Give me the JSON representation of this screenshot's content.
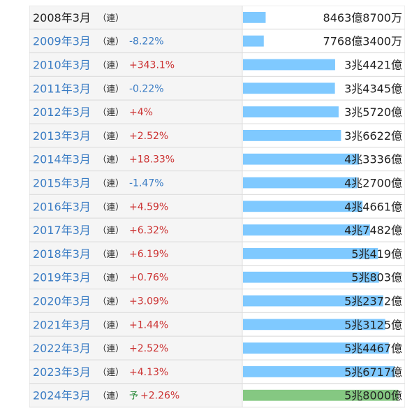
{
  "chart_data": {
    "type": "bar",
    "orientation": "horizontal",
    "rows": [
      {
        "label": "2008年3月",
        "tag": "（連）",
        "change": "",
        "forecast": "",
        "value_text": "8463億8700万",
        "value": 8463.87,
        "link": false
      },
      {
        "label": "2009年3月",
        "tag": "（連）",
        "change": "-8.22%",
        "forecast": "",
        "value_text": "7768億3400万",
        "value": 7768.34,
        "link": true
      },
      {
        "label": "2010年3月",
        "tag": "（連）",
        "change": "+343.1%",
        "forecast": "",
        "value_text": "3兆4421億",
        "value": 34421,
        "link": true
      },
      {
        "label": "2011年3月",
        "tag": "（連）",
        "change": "-0.22%",
        "forecast": "",
        "value_text": "3兆4345億",
        "value": 34345,
        "link": true
      },
      {
        "label": "2012年3月",
        "tag": "（連）",
        "change": "+4%",
        "forecast": "",
        "value_text": "3兆5720億",
        "value": 35720,
        "link": true
      },
      {
        "label": "2013年3月",
        "tag": "（連）",
        "change": "+2.52%",
        "forecast": "",
        "value_text": "3兆6622億",
        "value": 36622,
        "link": true
      },
      {
        "label": "2014年3月",
        "tag": "（連）",
        "change": "+18.33%",
        "forecast": "",
        "value_text": "4兆3336億",
        "value": 43336,
        "link": true
      },
      {
        "label": "2015年3月",
        "tag": "（連）",
        "change": "-1.47%",
        "forecast": "",
        "value_text": "4兆2700億",
        "value": 42700,
        "link": true
      },
      {
        "label": "2016年3月",
        "tag": "（連）",
        "change": "+4.59%",
        "forecast": "",
        "value_text": "4兆4661億",
        "value": 44661,
        "link": true
      },
      {
        "label": "2017年3月",
        "tag": "（連）",
        "change": "+6.32%",
        "forecast": "",
        "value_text": "4兆7482億",
        "value": 47482,
        "link": true
      },
      {
        "label": "2018年3月",
        "tag": "（連）",
        "change": "+6.19%",
        "forecast": "",
        "value_text": "5兆419億",
        "value": 50419,
        "link": true
      },
      {
        "label": "2019年3月",
        "tag": "（連）",
        "change": "+0.76%",
        "forecast": "",
        "value_text": "5兆803億",
        "value": 50803,
        "link": true
      },
      {
        "label": "2020年3月",
        "tag": "（連）",
        "change": "+3.09%",
        "forecast": "",
        "value_text": "5兆2372億",
        "value": 52372,
        "link": true
      },
      {
        "label": "2021年3月",
        "tag": "（連）",
        "change": "+1.44%",
        "forecast": "",
        "value_text": "5兆3125億",
        "value": 53125,
        "link": true
      },
      {
        "label": "2022年3月",
        "tag": "（連）",
        "change": "+2.52%",
        "forecast": "",
        "value_text": "5兆4467億",
        "value": 54467,
        "link": true
      },
      {
        "label": "2023年3月",
        "tag": "（連）",
        "change": "+4.13%",
        "forecast": "",
        "value_text": "5兆6717億",
        "value": 56717,
        "link": true
      },
      {
        "label": "2024年3月",
        "tag": "（連）",
        "change": "+2.26%",
        "forecast": "予",
        "value_text": "5兆8000億",
        "value": 58000,
        "link": true
      }
    ],
    "xlim": [
      0,
      60000
    ],
    "colors": {
      "bar": "#7fc9ff",
      "forecast_bar": "#85c882",
      "link_text": "#3a7cc4",
      "plain_text": "#222222",
      "positive_change": "#cc3333",
      "negative_change": "#3a7cc4",
      "forecast_marker": "#2a8a3a",
      "row_bg": "#f5f5f5",
      "grid": "#dddddd"
    }
  }
}
